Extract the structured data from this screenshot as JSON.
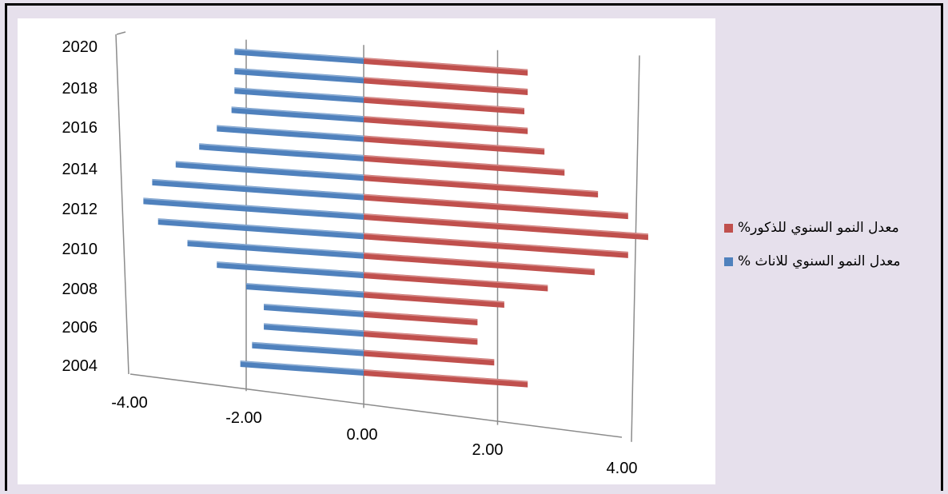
{
  "chart_data": {
    "type": "bar",
    "orientation": "horizontal-3d",
    "categories": [
      "2004",
      "2005",
      "2006",
      "2007",
      "2008",
      "2009",
      "2010",
      "2011",
      "2012",
      "2013",
      "2014",
      "2015",
      "2016",
      "2017",
      "2018",
      "2019",
      "2020"
    ],
    "y_tick_labels": [
      "2020",
      "2018",
      "2016",
      "2014",
      "2012",
      "2010",
      "2008",
      "2006",
      "2004"
    ],
    "x_tick_labels": [
      "-4.00",
      "-2.00",
      "0.00",
      "2.00",
      "4.00"
    ],
    "xlim": [
      -4,
      4
    ],
    "grid": true,
    "legend_position": "right",
    "series": [
      {
        "name": "معدل النمو السنوي للذكور%",
        "color": "#c0504d",
        "values": [
          2.45,
          1.95,
          1.7,
          1.7,
          2.1,
          2.75,
          3.45,
          3.95,
          4.25,
          3.95,
          3.5,
          3.0,
          2.7,
          2.45,
          2.4,
          2.45,
          2.45
        ]
      },
      {
        "name": "معدل النمو السنوي للاناث %",
        "color": "#4f81bd",
        "values": [
          -2.1,
          -1.9,
          -1.7,
          -1.7,
          -2.0,
          -2.5,
          -3.0,
          -3.5,
          -3.75,
          -3.6,
          -3.2,
          -2.8,
          -2.5,
          -2.25,
          -2.2,
          -2.2,
          -2.2
        ]
      }
    ]
  }
}
